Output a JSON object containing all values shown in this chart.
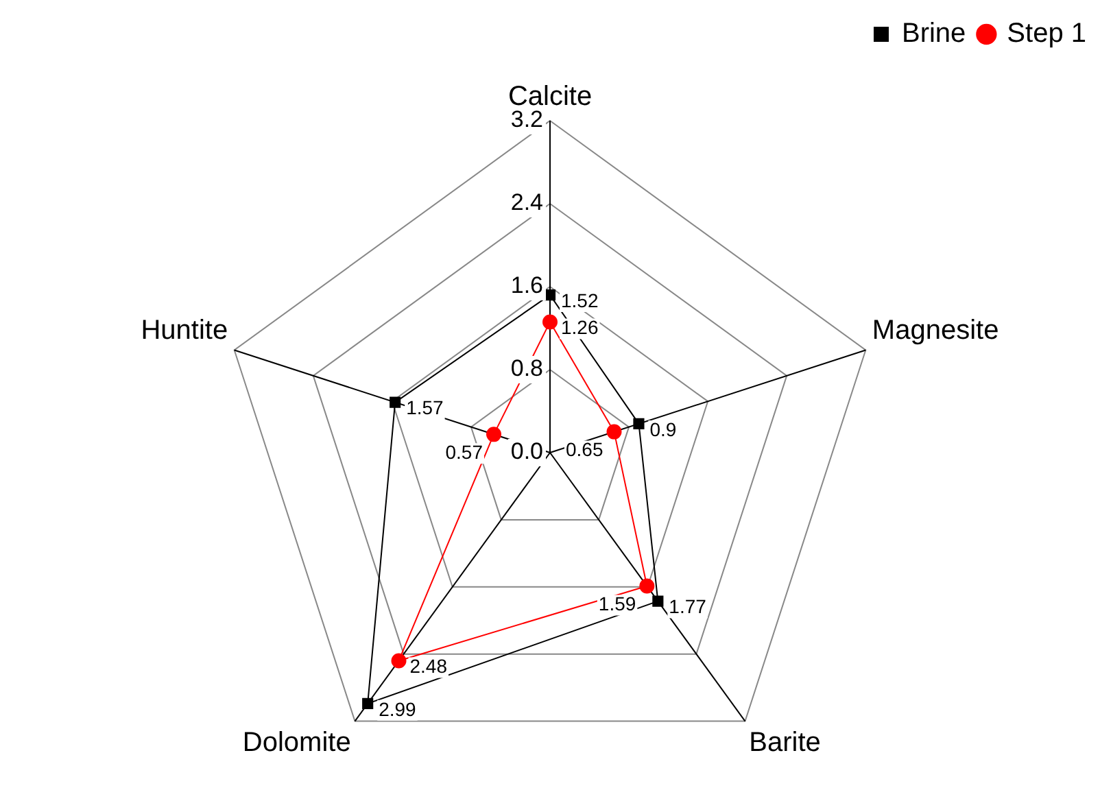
{
  "chart_data": {
    "type": "radar",
    "categories": [
      "Calcite",
      "Magnesite",
      "Barite",
      "Dolomite",
      "Huntite"
    ],
    "series": [
      {
        "name": "Brine",
        "color": "#000000",
        "marker": "square",
        "values": [
          1.52,
          0.9,
          1.77,
          2.99,
          1.57
        ]
      },
      {
        "name": "Step 1",
        "color": "#ff0000",
        "marker": "circle",
        "values": [
          1.26,
          0.65,
          1.59,
          2.48,
          0.57
        ]
      }
    ],
    "ylim": [
      0,
      3.2
    ],
    "yticks": [
      {
        "value": 0,
        "label": "0.0"
      },
      {
        "value": 0.8,
        "label": "0.8"
      },
      {
        "value": 1.6,
        "label": "1.6"
      },
      {
        "value": 2.4,
        "label": "2.4"
      },
      {
        "value": 3.2,
        "label": "3.2"
      }
    ],
    "grid": true,
    "legend": "top right",
    "data_labels": true,
    "line_style": "solid"
  }
}
